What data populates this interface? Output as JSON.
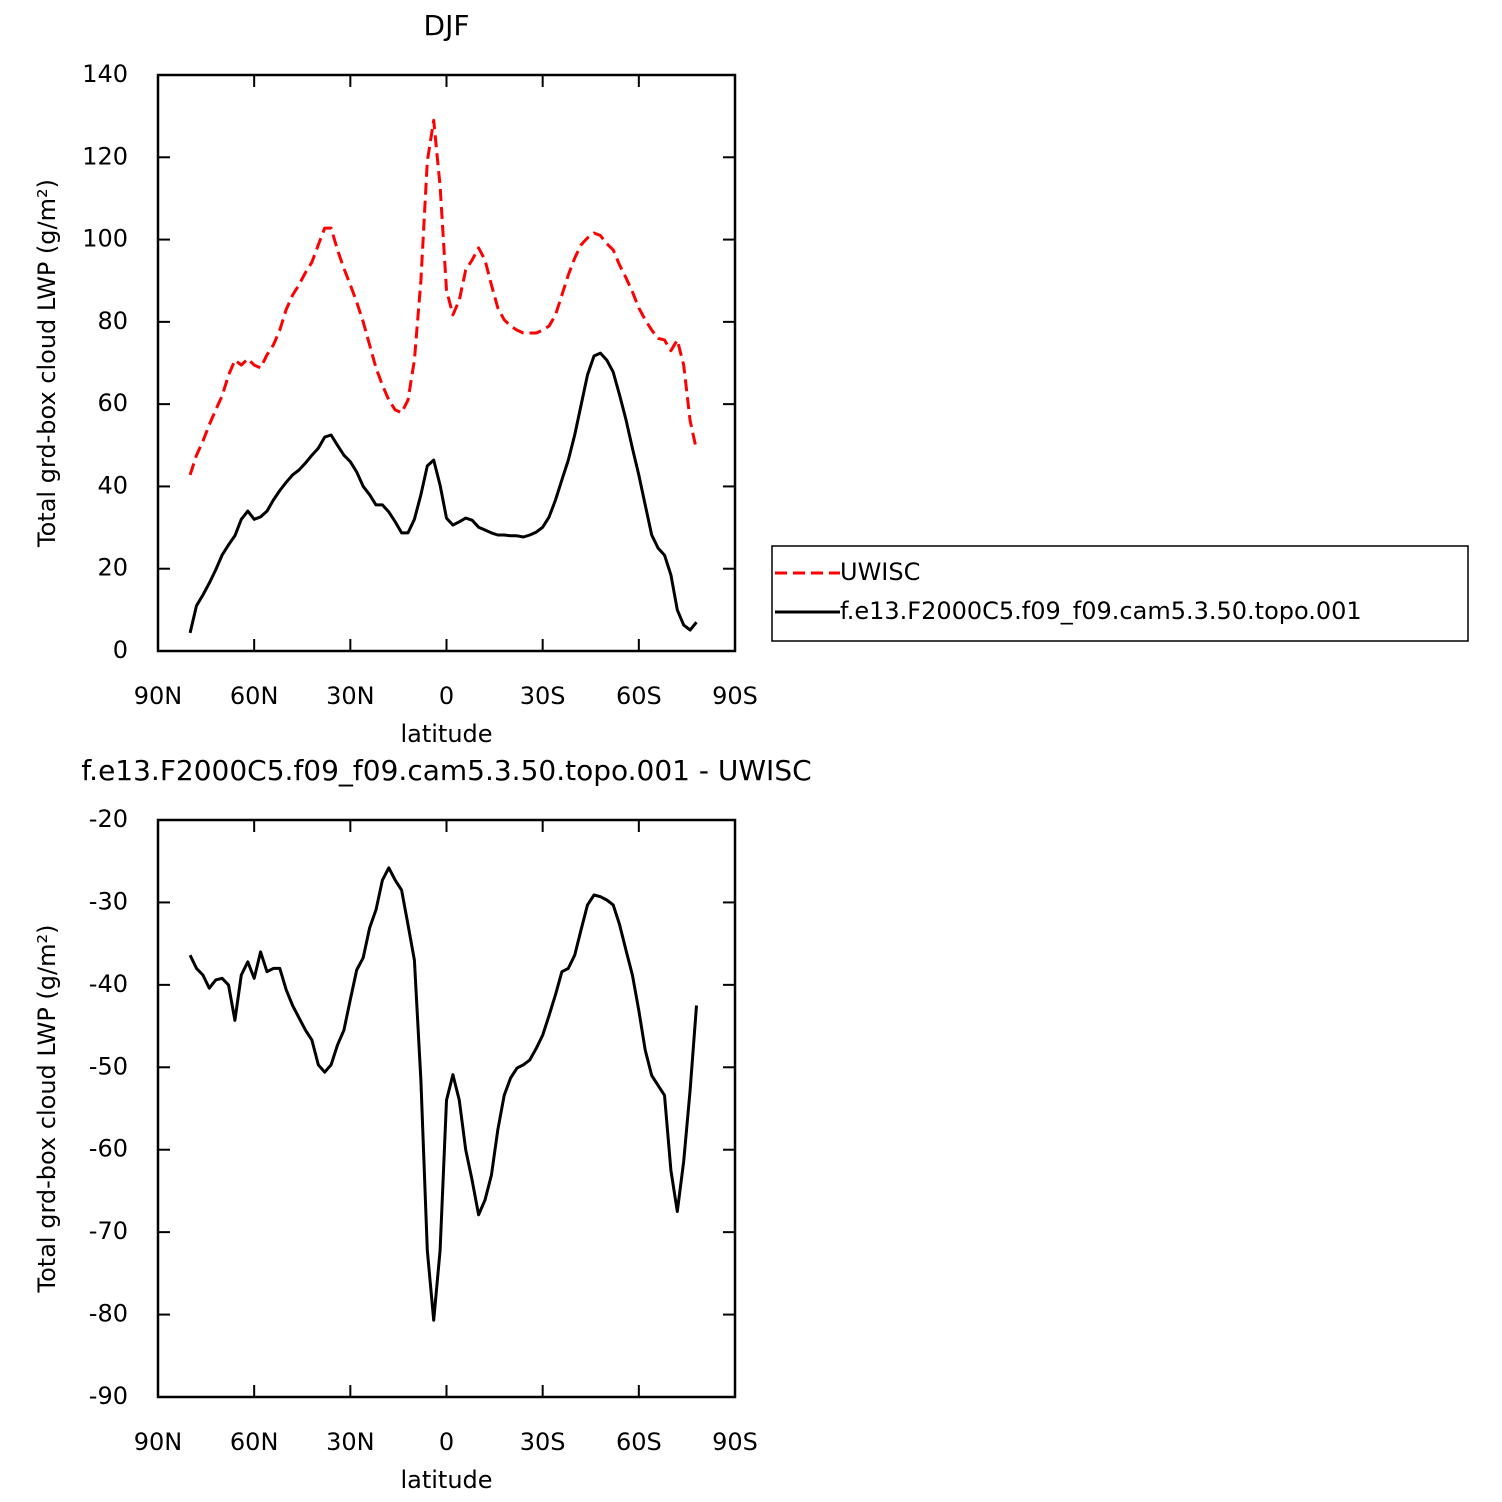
{
  "chart_data": [
    {
      "type": "line",
      "title": "DJF",
      "xlabel": "latitude",
      "ylabel": "Total grd-box cloud LWP (g/m²)",
      "x": [
        80,
        78,
        76,
        74,
        72,
        70,
        68,
        66,
        64,
        62,
        60,
        58,
        56,
        54,
        52,
        50,
        48,
        46,
        44,
        42,
        40,
        38,
        36,
        34,
        32,
        30,
        28,
        26,
        24,
        22,
        20,
        18,
        16,
        14,
        12,
        10,
        8,
        6,
        4,
        2,
        0,
        -2,
        -4,
        -6,
        -8,
        -10,
        -12,
        -14,
        -16,
        -18,
        -20,
        -22,
        -24,
        -26,
        -28,
        -30,
        -32,
        -34,
        -36,
        -38,
        -40,
        -42,
        -44,
        -46,
        -48,
        -50,
        -52,
        -54,
        -56,
        -58,
        -60,
        -62,
        -64,
        -66,
        -68,
        -70,
        -72,
        -74,
        -76,
        -78
      ],
      "xlim": [
        90,
        -90
      ],
      "xticks": [
        {
          "value": 90,
          "label": "90N"
        },
        {
          "value": 60,
          "label": "60N"
        },
        {
          "value": 30,
          "label": "30N"
        },
        0,
        {
          "value": -30,
          "label": "30S"
        },
        {
          "value": -60,
          "label": "60S"
        },
        {
          "value": -90,
          "label": "90S"
        }
      ],
      "ylim": [
        0,
        140
      ],
      "yticks": [
        0,
        20,
        40,
        60,
        80,
        100,
        120,
        140
      ],
      "legend": "right",
      "series": [
        {
          "name": "UWISC",
          "color": "#ff0000",
          "dashed": true,
          "values": [
            42.8,
            47.6,
            51,
            55,
            58.6,
            62,
            67,
            70.7,
            69.5,
            71,
            69.5,
            68.8,
            72,
            74.4,
            78,
            83,
            86.5,
            89,
            92,
            94.5,
            98.7,
            102.8,
            102.8,
            97.5,
            93,
            89,
            84.8,
            80,
            74.4,
            68.8,
            64.6,
            61,
            58.6,
            57.9,
            61,
            70.7,
            90,
            119,
            129,
            113,
            87.7,
            81.7,
            85.3,
            92.6,
            95,
            98,
            95,
            89,
            83.4,
            80.5,
            79,
            78,
            77.3,
            77.3,
            77.3,
            78,
            79,
            81.7,
            86.5,
            91.4,
            95.5,
            98.7,
            100.4,
            101.6,
            101,
            99,
            97.5,
            93.8,
            90.7,
            87.3,
            83.4,
            80.5,
            78,
            76,
            75.6,
            73,
            75.6,
            69.5,
            56,
            48.9
          ]
        },
        {
          "name": "f.e13.F2000C5.f09_f09.cam5.3.50.topo.001",
          "color": "#000000",
          "dashed": false,
          "values": [
            4.4,
            11,
            13.6,
            16.5,
            19.7,
            23.3,
            25.8,
            28,
            32,
            34,
            32,
            32.6,
            34,
            36.7,
            39,
            41,
            42.8,
            44,
            45.7,
            47.6,
            49.3,
            52,
            52.5,
            50,
            47.6,
            46,
            43.5,
            40,
            38,
            35.5,
            35.5,
            33.8,
            31.4,
            28.7,
            28.7,
            32,
            38,
            45,
            46.4,
            40.3,
            32.3,
            30.6,
            31.4,
            32.3,
            31.8,
            30.1,
            29.4,
            28.7,
            28.2,
            28.2,
            28,
            28,
            27.7,
            28.2,
            28.9,
            30.1,
            32.6,
            36.7,
            41.6,
            46.4,
            52.5,
            59.8,
            67.1,
            71.7,
            72.4,
            70.7,
            67.8,
            62.2,
            56.2,
            49.3,
            42.8,
            35.5,
            28.2,
            25,
            23.3,
            18.5,
            10,
            6.3,
            5.1,
            7
          ]
        }
      ]
    },
    {
      "type": "line",
      "title": "f.e13.F2000C5.f09_f09.cam5.3.50.topo.001 - UWISC",
      "xlabel": "latitude",
      "ylabel": "Total grd-box cloud LWP (g/m²)",
      "x": [
        80,
        78,
        76,
        74,
        72,
        70,
        68,
        66,
        64,
        62,
        60,
        58,
        56,
        54,
        52,
        50,
        48,
        46,
        44,
        42,
        40,
        38,
        36,
        34,
        32,
        30,
        28,
        26,
        24,
        22,
        20,
        18,
        16,
        14,
        12,
        10,
        8,
        6,
        4,
        2,
        0,
        -2,
        -4,
        -6,
        -8,
        -10,
        -12,
        -14,
        -16,
        -18,
        -20,
        -22,
        -24,
        -26,
        -28,
        -30,
        -32,
        -34,
        -36,
        -38,
        -40,
        -42,
        -44,
        -46,
        -48,
        -50,
        -52,
        -54,
        -56,
        -58,
        -60,
        -62,
        -64,
        -66,
        -68,
        -70,
        -72,
        -74,
        -76,
        -78
      ],
      "xlim": [
        90,
        -90
      ],
      "xticks": [
        {
          "value": 90,
          "label": "90N"
        },
        {
          "value": 60,
          "label": "60N"
        },
        {
          "value": 30,
          "label": "30N"
        },
        0,
        {
          "value": -30,
          "label": "30S"
        },
        {
          "value": -60,
          "label": "60S"
        },
        {
          "value": -90,
          "label": "90S"
        }
      ],
      "ylim": [
        -90,
        -20
      ],
      "yticks": [
        -90,
        -80,
        -70,
        -60,
        -50,
        -40,
        -30,
        -20
      ],
      "color": "#000000",
      "values": [
        -36.4,
        -38,
        -38.8,
        -40.4,
        -39.4,
        -39.2,
        -40,
        -44.3,
        -38.8,
        -37.2,
        -39.2,
        -36,
        -38.4,
        -38,
        -38,
        -40.6,
        -42.5,
        -44,
        -45.5,
        -46.7,
        -49.7,
        -50.6,
        -49.7,
        -47.3,
        -45.5,
        -41.8,
        -38.2,
        -36.7,
        -33.1,
        -30.9,
        -27.3,
        -25.8,
        -27.3,
        -28.5,
        -32.7,
        -37,
        -51.6,
        -72.2,
        -80.7,
        -72.2,
        -54,
        -50.9,
        -54,
        -60,
        -63.7,
        -67.9,
        -66.1,
        -63.1,
        -57.6,
        -53.4,
        -51.3,
        -50.1,
        -49.7,
        -49.1,
        -47.7,
        -46.1,
        -43.7,
        -41.2,
        -38.4,
        -38,
        -36.4,
        -33.3,
        -30.3,
        -29.1,
        -29.3,
        -29.7,
        -30.3,
        -32.7,
        -35.8,
        -38.8,
        -43.1,
        -47.9,
        -51,
        -52.2,
        -53.4,
        -62.5,
        -67.5,
        -61.4,
        -52.8,
        -42.5
      ]
    }
  ]
}
